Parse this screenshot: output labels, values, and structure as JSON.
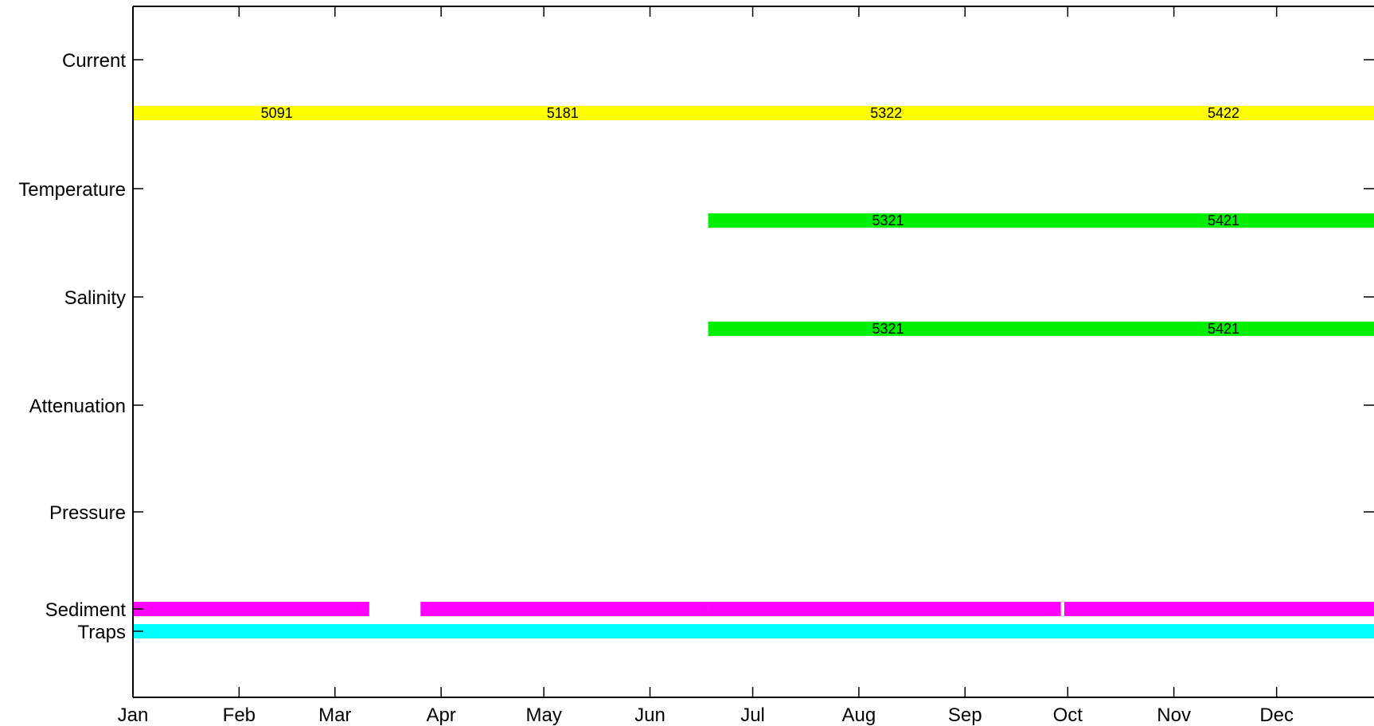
{
  "chart_data": {
    "type": "bar",
    "title": "",
    "xlabel": "",
    "ylabel": "",
    "x_ticks": [
      "Jan",
      "Feb",
      "Mar",
      "Apr",
      "May",
      "Jun",
      "Jul",
      "Aug",
      "Sep",
      "Oct",
      "Nov",
      "Dec"
    ],
    "y_categories": [
      "Current",
      "Temperature",
      "Salinity",
      "Attenuation",
      "Pressure",
      "Sediment",
      "Traps"
    ],
    "grid": false,
    "legend": "none",
    "bar_rows": [
      {
        "row": "Current",
        "color": "#ffff00",
        "segments": [
          {
            "start": "01-01",
            "end": "03-25",
            "label": "5091"
          },
          {
            "start": "03-25",
            "end": "06-17",
            "label": "5181"
          },
          {
            "start": "06-17",
            "end": "09-30",
            "label": "5322"
          },
          {
            "start": "09-30",
            "end": "12-31",
            "label": "5422"
          }
        ]
      },
      {
        "row": "Temperature",
        "color": "#00ee00",
        "segments": [
          {
            "start": "06-18",
            "end": "09-30",
            "label": "5321"
          },
          {
            "start": "09-30",
            "end": "12-31",
            "label": "5421"
          }
        ]
      },
      {
        "row": "Salinity",
        "color": "#00ee00",
        "segments": [
          {
            "start": "06-18",
            "end": "09-30",
            "label": "5321"
          },
          {
            "start": "09-30",
            "end": "12-31",
            "label": "5421"
          }
        ]
      },
      {
        "row": "Sediment",
        "color": "#ff00ff",
        "segments": [
          {
            "start": "01-01",
            "end": "03-10",
            "label": ""
          },
          {
            "start": "03-26",
            "end": "06-17",
            "label": ""
          },
          {
            "start": "06-18",
            "end": "09-28",
            "label": ""
          },
          {
            "start": "09-30",
            "end": "12-31",
            "label": ""
          }
        ]
      },
      {
        "row": "Traps",
        "color": "#00ffff",
        "segments": [
          {
            "start": "01-01",
            "end": "12-31",
            "label": ""
          }
        ]
      }
    ]
  }
}
